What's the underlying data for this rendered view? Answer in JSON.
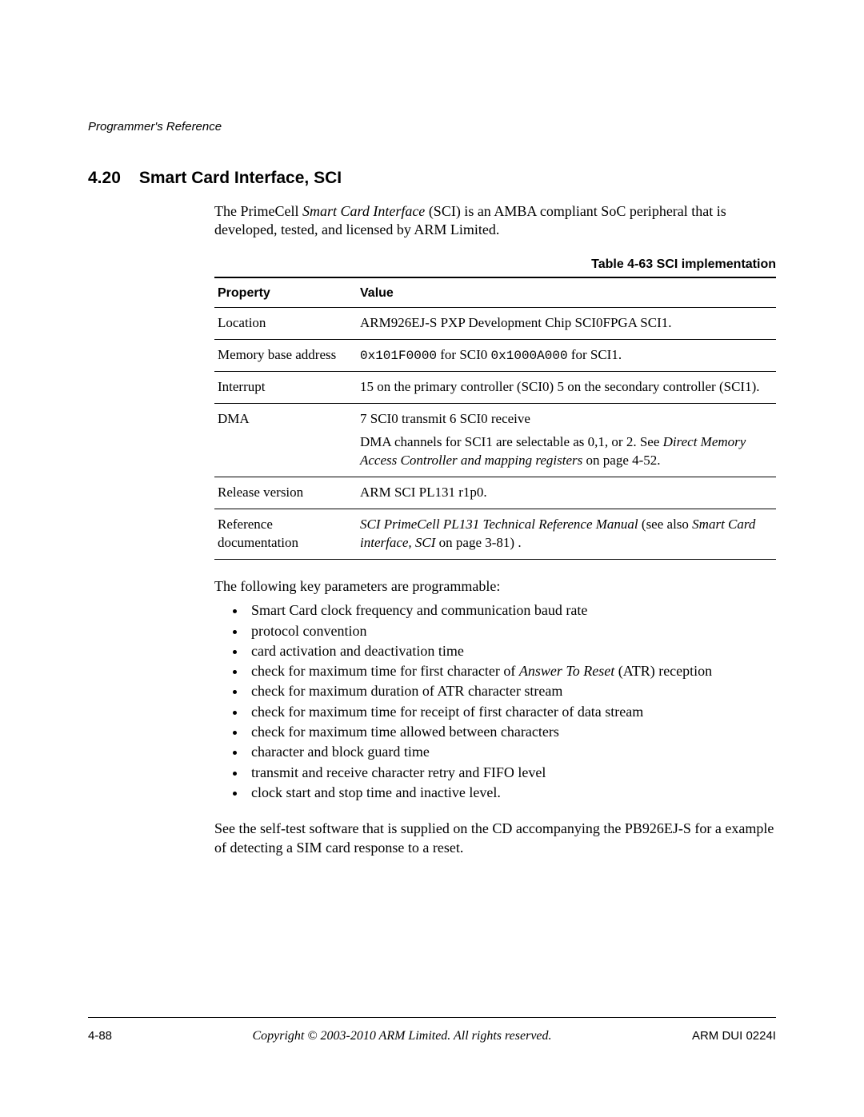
{
  "running_header": "Programmer's Reference",
  "section": {
    "number": "4.20",
    "title": "Smart Card Interface, SCI"
  },
  "intro": {
    "pre": "The PrimeCell ",
    "italic": "Smart Card Interface",
    "post": " (SCI) is an AMBA compliant SoC peripheral that is developed, tested, and licensed by ARM Limited."
  },
  "table": {
    "caption": "Table 4-63 SCI implementation",
    "columns": [
      "Property",
      "Value"
    ],
    "rows": [
      {
        "property": "Location",
        "value_parts": [
          {
            "t": "plain",
            "v": "ARM926EJ-S PXP Development Chip SCI0FPGA SCI1."
          }
        ]
      },
      {
        "property": "Memory base address",
        "value_parts": [
          {
            "t": "mono",
            "v": "0x101F0000"
          },
          {
            "t": "plain",
            "v": " for SCI0 "
          },
          {
            "t": "mono",
            "v": "0x1000A000"
          },
          {
            "t": "plain",
            "v": " for SCI1."
          }
        ]
      },
      {
        "property": "Interrupt",
        "value_parts": [
          {
            "t": "plain",
            "v": "15 on the primary controller (SCI0) 5 on the secondary controller (SCI1)."
          }
        ]
      },
      {
        "property": "DMA",
        "value_parts": [
          {
            "t": "plain",
            "v": "7 SCI0 transmit 6 SCI0 receive"
          },
          {
            "t": "br"
          },
          {
            "t": "plain",
            "v": "DMA channels for SCI1 are selectable as 0,1, or 2. See "
          },
          {
            "t": "italic",
            "v": "Direct Memory Access Controller and mapping registers"
          },
          {
            "t": "plain",
            "v": " on page 4-52."
          }
        ]
      },
      {
        "property": "Release version",
        "value_parts": [
          {
            "t": "plain",
            "v": "ARM SCI PL131 r1p0."
          }
        ]
      },
      {
        "property": "Reference documentation",
        "value_parts": [
          {
            "t": "italic",
            "v": "SCI PrimeCell PL131 Technical Reference Manual"
          },
          {
            "t": "plain",
            "v": " (see also "
          },
          {
            "t": "italic",
            "v": "Smart Card interface, SCI"
          },
          {
            "t": "plain",
            "v": " on page 3-81) ."
          }
        ]
      }
    ]
  },
  "para_before_list": "The following key parameters are programmable:",
  "bullets": [
    {
      "parts": [
        {
          "t": "plain",
          "v": "Smart Card clock frequency and communication baud rate"
        }
      ]
    },
    {
      "parts": [
        {
          "t": "plain",
          "v": "protocol convention"
        }
      ]
    },
    {
      "parts": [
        {
          "t": "plain",
          "v": "card activation and deactivation time"
        }
      ]
    },
    {
      "parts": [
        {
          "t": "plain",
          "v": "check for maximum time for first character of "
        },
        {
          "t": "italic",
          "v": "Answer To Reset"
        },
        {
          "t": "plain",
          "v": " (ATR) reception"
        }
      ]
    },
    {
      "parts": [
        {
          "t": "plain",
          "v": "check for maximum duration of ATR character stream"
        }
      ]
    },
    {
      "parts": [
        {
          "t": "plain",
          "v": "check for maximum time for receipt of first character of data stream"
        }
      ]
    },
    {
      "parts": [
        {
          "t": "plain",
          "v": "check for maximum time allowed between characters"
        }
      ]
    },
    {
      "parts": [
        {
          "t": "plain",
          "v": "character and block guard time"
        }
      ]
    },
    {
      "parts": [
        {
          "t": "plain",
          "v": "transmit and receive character retry and FIFO level"
        }
      ]
    },
    {
      "parts": [
        {
          "t": "plain",
          "v": "clock start and stop time and inactive level."
        }
      ]
    }
  ],
  "para_after_list": "See the self-test software that is supplied on the CD accompanying the PB926EJ-S for a example of detecting a SIM card response to a reset.",
  "footer": {
    "left": "4-88",
    "center": "Copyright © 2003-2010 ARM Limited. All rights reserved.",
    "right": "ARM DUI 0224I"
  }
}
